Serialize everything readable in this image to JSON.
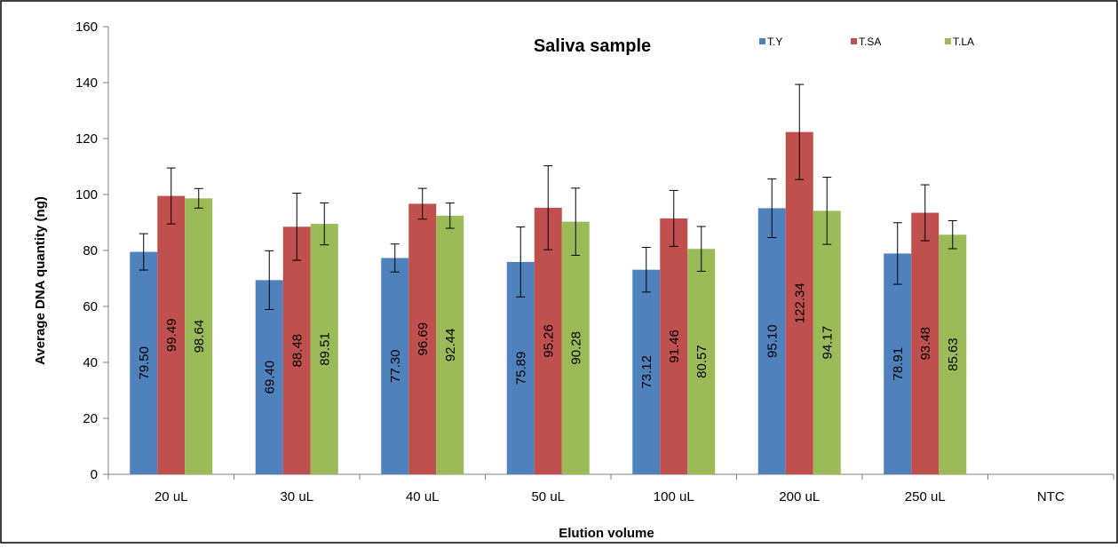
{
  "chart_data": {
    "type": "bar",
    "title": "Saliva sample",
    "xlabel": "Elution volume",
    "ylabel": "Average DNA quantity (ng)",
    "ylim": [
      0,
      160
    ],
    "yticks": [
      0,
      20,
      40,
      60,
      80,
      100,
      120,
      140,
      160
    ],
    "grid": false,
    "legend_position": "top-right",
    "categories": [
      "20 uL",
      "30 uL",
      "40 uL",
      "50 uL",
      "100 uL",
      "200 uL",
      "250 uL",
      "NTC"
    ],
    "series": [
      {
        "name": "T.Y",
        "color": "#4F81BD",
        "values": [
          79.5,
          69.4,
          77.3,
          75.89,
          73.12,
          95.1,
          78.91,
          null
        ],
        "labels": [
          "79.50",
          "69.40",
          "77.30",
          "75.89",
          "73.12",
          "95.10",
          "78.91",
          ""
        ],
        "errors": [
          6.5,
          10.5,
          5.0,
          12.5,
          8.0,
          10.5,
          11.0,
          null
        ]
      },
      {
        "name": "T.SA",
        "color": "#C0504D",
        "values": [
          99.49,
          88.48,
          96.69,
          95.26,
          91.46,
          122.34,
          93.48,
          null
        ],
        "labels": [
          "99.49",
          "88.48",
          "96.69",
          "95.26",
          "91.46",
          "122.34",
          "93.48",
          ""
        ],
        "errors": [
          10.0,
          12.0,
          5.5,
          15.0,
          10.0,
          17.0,
          10.0,
          null
        ]
      },
      {
        "name": "T.LA",
        "color": "#9BBB59",
        "values": [
          98.64,
          89.51,
          92.44,
          90.28,
          80.57,
          94.17,
          85.63,
          null
        ],
        "labels": [
          "98.64",
          "89.51",
          "92.44",
          "90.28",
          "80.57",
          "94.17",
          "85.63",
          ""
        ],
        "errors": [
          3.5,
          7.5,
          4.5,
          12.0,
          8.0,
          12.0,
          5.0,
          null
        ]
      }
    ]
  }
}
